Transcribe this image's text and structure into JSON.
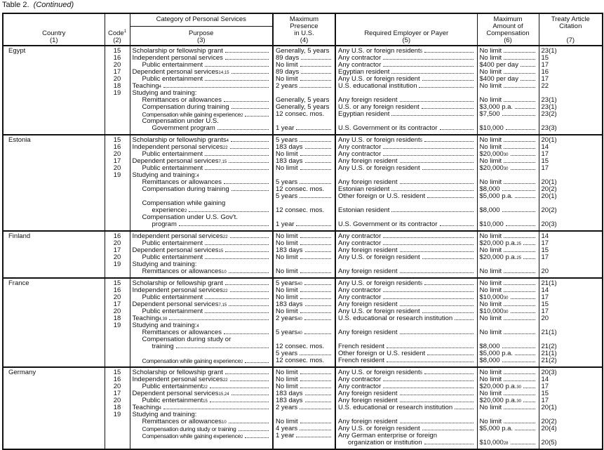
{
  "title": {
    "label": "Table 2.",
    "note": "(Continued)"
  },
  "headers": {
    "country": "Country",
    "country_num": "(1)",
    "code": "Code",
    "code_sup": "1",
    "code_num": "(2)",
    "category": "Category of Personal Services",
    "purpose": "Purpose",
    "purpose_num": "(3)",
    "presence": [
      "Maximum",
      "Presence",
      "in U.S."
    ],
    "presence_num": "(4)",
    "payer": "Required Employer or Payer",
    "payer_num": "(5)",
    "amount": [
      "Maximum",
      "Amount of",
      "Compensation"
    ],
    "amount_num": "(6)",
    "citation": [
      "Treaty Article",
      "Citation"
    ],
    "citation_num": "(7)"
  },
  "countries": [
    {
      "name": "Egypt",
      "rows": [
        {
          "c": "15",
          "p": "Scholarship or fellowship grant",
          "i": 0,
          "d": "Generally, 5 years",
          "e": "Any U.S. or foreign resident",
          "es": "5",
          "a": "No limit",
          "t": "23(1)"
        },
        {
          "c": "16",
          "p": "Independent personal services",
          "i": 0,
          "d": "89 days",
          "e": "Any contractor",
          "a": "No limit",
          "t": "15"
        },
        {
          "c": "20",
          "p": "Public entertainment",
          "i": 1,
          "d": "No limit",
          "e": "Any contractor",
          "a": "$400 per day",
          "t": "17"
        },
        {
          "c": "17",
          "p": "Dependent personal services",
          "ps": "14,15",
          "i": 0,
          "d": "89 days",
          "e": "Egyptian resident",
          "a": "No limit",
          "t": "16"
        },
        {
          "c": "20",
          "p": "Public entertainment",
          "i": 1,
          "d": "No limit",
          "e": "Any U.S. or foreign resident",
          "a": "$400 per day",
          "t": "17"
        },
        {
          "c": "18",
          "p": "Teaching",
          "ps": "4",
          "i": 0,
          "d": "2 years",
          "e": "U.S. educational institution",
          "a": "No limit",
          "t": "22"
        },
        {
          "c": "19",
          "p": "Studying and training:",
          "i": 0,
          "nl": true
        },
        {
          "p": "Remittances or allowances",
          "i": 1,
          "d": "Generally, 5 years",
          "e": "Any foreign resident",
          "a": "No limit",
          "t": "23(1)"
        },
        {
          "p": "Compensation during training",
          "i": 1,
          "d": "Generally, 5 years",
          "e": "U.S. or any foreign resident",
          "a": "$3,000 p.a.",
          "t": "23(1)"
        },
        {
          "p": "Compensation while gaining experience",
          "ps": "2",
          "i": 1,
          "s": true,
          "d": "12 consec. mos.",
          "e": "Egyptian resident",
          "a": "$7,500",
          "t": "23(2)"
        },
        {
          "p": "Compensation under U.S.",
          "i": 1,
          "nl": true
        },
        {
          "p": "Government program",
          "i": 2,
          "d": "1 year",
          "e": "U.S. Government or its contractor",
          "a": "$10,000",
          "t": "23(3)"
        }
      ]
    },
    {
      "name": "Estonia",
      "rows": [
        {
          "c": "15",
          "p": "Scholarship or fellowship grants",
          "ps": "4",
          "i": 0,
          "d": "5 years",
          "e": "Any U.S. or foreign resident",
          "es": "5",
          "a": "No limit",
          "t": "20(1)"
        },
        {
          "c": "16",
          "p": "Independent personal services",
          "ps": "22",
          "i": 0,
          "d": "183 days",
          "e": "Any contractor",
          "a": "No limit",
          "t": "14"
        },
        {
          "c": "20",
          "p": "Public entertainment",
          "i": 1,
          "d": "No limit",
          "e": "Any contractor",
          "a": "$20,000",
          "as": "30",
          "t": "17"
        },
        {
          "c": "17",
          "p": "Dependent personal services",
          "ps": "7,15",
          "i": 0,
          "d": "183 days",
          "e": "Any foreign resident",
          "a": "No limit",
          "t": "15"
        },
        {
          "c": "20",
          "p": "Public entertainment",
          "i": 1,
          "d": "No limit",
          "e": "Any U.S. or foreign resident",
          "a": "$20,000",
          "as": "30",
          "t": "17"
        },
        {
          "c": "19",
          "p": "Studying and training:",
          "ps": "4",
          "i": 0,
          "nl": true
        },
        {
          "p": "Remittances or allowances",
          "i": 1,
          "d": "5 years",
          "e": "Any foreign resident",
          "a": "No limit",
          "t": "20(1)"
        },
        {
          "p": "Compensation during training",
          "i": 1,
          "d": "12 consec. mos.",
          "e": "Estonian resident",
          "a": "$8,000",
          "t": "20(2)"
        },
        {
          "p": "",
          "i": 1,
          "nl": true,
          "d": "5 years",
          "e": "Other foreign or U.S. resident",
          "a": "$5,000 p.a.",
          "t": "20(1)"
        },
        {
          "p": "Compensation while gaining",
          "i": 1,
          "nl": true
        },
        {
          "p": "experience",
          "ps": "2",
          "i": 2,
          "d": "12 consec. mos.",
          "e": "Estonian resident",
          "a": "$8,000",
          "t": "20(2)"
        },
        {
          "p": "Compensation under U.S. Gov't.",
          "i": 1,
          "nl": true
        },
        {
          "p": "program",
          "i": 2,
          "d": "1 year",
          "e": "U.S. Government or its contractor",
          "a": "$10,000",
          "t": "20(3)"
        }
      ]
    },
    {
      "name": "Finland",
      "rows": [
        {
          "c": "16",
          "p": "Independent personal services",
          "ps": "22",
          "i": 0,
          "d": "No limit",
          "e": "Any contractor",
          "a": "No limit",
          "t": "14"
        },
        {
          "c": "20",
          "p": "Public entertainment",
          "i": 1,
          "d": "No limit",
          "e": "Any contractor",
          "a": "$20,000 p.a.",
          "as": "25",
          "t": "17"
        },
        {
          "c": "17",
          "p": "Dependent personal services",
          "ps": "15",
          "i": 0,
          "d": "183 days",
          "e": "Any foreign resident",
          "a": "No limit",
          "t": "15"
        },
        {
          "c": "20",
          "p": "Public entertainment",
          "i": 1,
          "d": "No limit",
          "e": "Any U.S. or foreign resident",
          "a": "$20,000 p.a.",
          "as": "25",
          "t": "17"
        },
        {
          "c": "19",
          "p": "Studying and training:",
          "i": 0,
          "nl": true
        },
        {
          "p": "Remittances or allowances",
          "ps": "10",
          "i": 1,
          "d": "No limit",
          "e": "Any foreign resident",
          "a": "No limit",
          "t": "20"
        }
      ]
    },
    {
      "name": "France",
      "rows": [
        {
          "c": "15",
          "p": "Scholarship or fellowship grant",
          "i": 0,
          "d": "5 years",
          "ds": "40",
          "e": "Any U.S. or foreign resident",
          "es": "5",
          "a": "No limit",
          "t": "21(1)"
        },
        {
          "c": "16",
          "p": "Independent personal services",
          "ps": "22",
          "i": 0,
          "d": "No limit",
          "e": "Any contractor",
          "a": "No limit",
          "t": "14"
        },
        {
          "c": "20",
          "p": "Public entertainment",
          "i": 1,
          "d": "No limit",
          "e": "Any contractor",
          "a": "$10,000",
          "as": "30",
          "t": "17"
        },
        {
          "c": "17",
          "p": "Dependent personal services",
          "ps": "7,15",
          "i": 0,
          "d": "183 days",
          "e": "Any foreign resident",
          "a": "No limit",
          "t": "15"
        },
        {
          "c": "20",
          "p": "Public entertainment",
          "i": 1,
          "d": "No limit",
          "e": "Any U.S. or foreign resident",
          "a": "$10,000",
          "as": "30",
          "t": "17"
        },
        {
          "c": "18",
          "p": "Teaching",
          "ps": "4,39",
          "i": 0,
          "d": "2 years",
          "ds": "40",
          "e": "U.S. educational or research institution",
          "a": "No limit",
          "t": "20"
        },
        {
          "c": "19",
          "p": "Studying and training:",
          "ps": "4",
          "i": 0,
          "nl": true
        },
        {
          "p": "Remittances or allowances",
          "i": 1,
          "d": "5 years",
          "ds": "40",
          "e": "Any foreign resident",
          "a": "No limit",
          "t": "21(1)"
        },
        {
          "p": "Compensation during study or",
          "i": 1,
          "nl": true
        },
        {
          "p": "training",
          "i": 2,
          "d": "12 consec. mos.",
          "e": "French resident",
          "a": "$8,000",
          "t": "21(2)"
        },
        {
          "p": "",
          "i": 1,
          "nl": true,
          "d": "5 years",
          "e": "Other foreign or U.S. resident",
          "a": "$5,000 p.a.",
          "t": "21(1)"
        },
        {
          "p": "Compensation while gaining experience",
          "ps": "2",
          "i": 1,
          "s": true,
          "d": "12 consec. mos.",
          "e": "French resident",
          "a": "$8,000",
          "t": "21(2)"
        }
      ]
    },
    {
      "name": "Germany",
      "rows": [
        {
          "c": "15",
          "p": "Scholarship or fellowship grant",
          "i": 0,
          "d": "No limit",
          "e": "Any U.S. or foreign resident",
          "es": "5",
          "a": "No limit",
          "t": "20(3)"
        },
        {
          "c": "16",
          "p": "Independent personal services",
          "ps": "22",
          "i": 0,
          "d": "No limit",
          "e": "Any contractor",
          "a": "No limit",
          "t": "14"
        },
        {
          "c": "20",
          "p": "Public entertainment",
          "ps": "22",
          "i": 1,
          "d": "No limit",
          "e": "Any contractor",
          "a": "$20,000 p.a.",
          "as": "30",
          "t": "17"
        },
        {
          "c": "17",
          "p": "Dependent personal services",
          "ps": "15,24",
          "i": 0,
          "d": "183 days",
          "e": "Any foreign resident",
          "a": "No limit",
          "t": "15"
        },
        {
          "c": "20",
          "p": "Public entertainment",
          "ps": "15",
          "i": 1,
          "d": "183 days",
          "e": "Any foreign resident",
          "a": "$20,000 p.a.",
          "as": "30",
          "t": "17"
        },
        {
          "c": "18",
          "p": "Teaching",
          "ps": "4",
          "i": 0,
          "d": "2 years",
          "e": "U.S. educational or research institution",
          "a": "No limit",
          "t": "20(1)"
        },
        {
          "c": "19",
          "p": "Studying and training:",
          "i": 0,
          "nl": true
        },
        {
          "p": "Remittances or allowances",
          "ps": "10",
          "i": 1,
          "d": "No limit",
          "e": "Any foreign resident",
          "a": "No limit",
          "t": "20(2)"
        },
        {
          "p": "Compensation during study or training",
          "i": 1,
          "s": true,
          "d": "4 years",
          "e": "Any U.S. or foreign resident",
          "a": "$5,000 p.a.",
          "t": "20(4)"
        },
        {
          "p": "Compensation while gaining experience",
          "ps": "2",
          "i": 1,
          "s": true,
          "d": "1 year",
          "e": "Any German enterprise or foreign",
          "en": true
        },
        {
          "p": "",
          "i": 1,
          "nl": true,
          "e": "organization or institution",
          "ei": 1,
          "a": "$10,000",
          "as": "28",
          "t": "20(5)"
        }
      ]
    }
  ]
}
